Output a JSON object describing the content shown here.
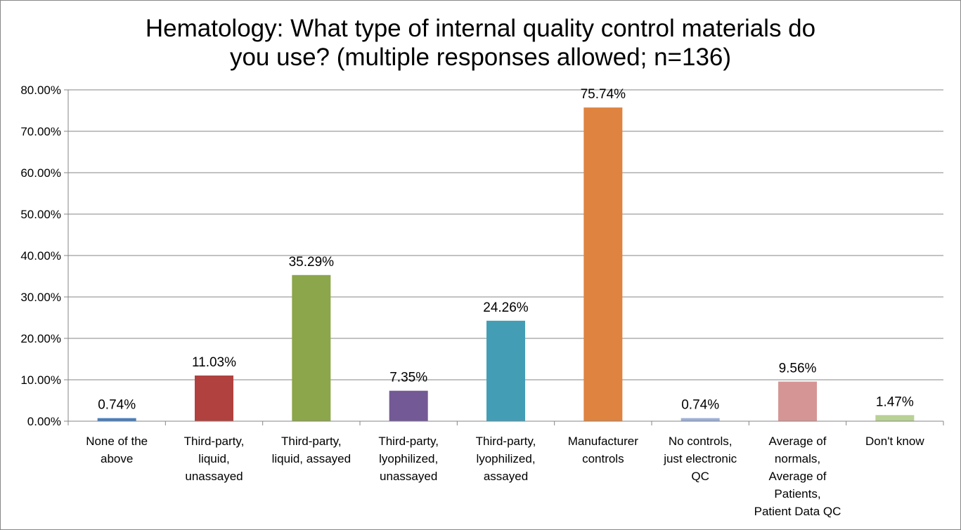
{
  "chart_data": {
    "type": "bar",
    "title_lines": [
      "Hematology: What type of internal quality control materials do",
      "you use? (multiple responses allowed; n=136)"
    ],
    "categories": [
      [
        "None of the",
        "above"
      ],
      [
        "Third-party,",
        "liquid,",
        "unassayed"
      ],
      [
        "Third-party,",
        "liquid, assayed"
      ],
      [
        "Third-party,",
        "lyophilized,",
        "unassayed"
      ],
      [
        "Third-party,",
        "lyophilized,",
        "assayed"
      ],
      [
        "Manufacturer",
        "controls"
      ],
      [
        "No controls,",
        "just electronic",
        "QC"
      ],
      [
        "Average of",
        "normals,",
        "Average of",
        "Patients,",
        "Patient Data QC"
      ],
      [
        "Don't know"
      ]
    ],
    "values": [
      0.74,
      11.03,
      35.29,
      7.35,
      24.26,
      75.74,
      0.74,
      9.56,
      1.47
    ],
    "data_labels": [
      "0.74%",
      "11.03%",
      "35.29%",
      "7.35%",
      "24.26%",
      "75.74%",
      "0.74%",
      "9.56%",
      "1.47%"
    ],
    "colors": [
      "#4A7EBB",
      "#B0413E",
      "#8BA64B",
      "#735995",
      "#439EB5",
      "#DE8340",
      "#9AAED6",
      "#D69595",
      "#B8D194"
    ],
    "yticks": [
      "0.00%",
      "10.00%",
      "20.00%",
      "30.00%",
      "40.00%",
      "50.00%",
      "60.00%",
      "70.00%",
      "80.00%"
    ],
    "ylim": [
      0,
      80
    ],
    "grid": true,
    "legend": "none",
    "xlabel": "",
    "ylabel": ""
  }
}
